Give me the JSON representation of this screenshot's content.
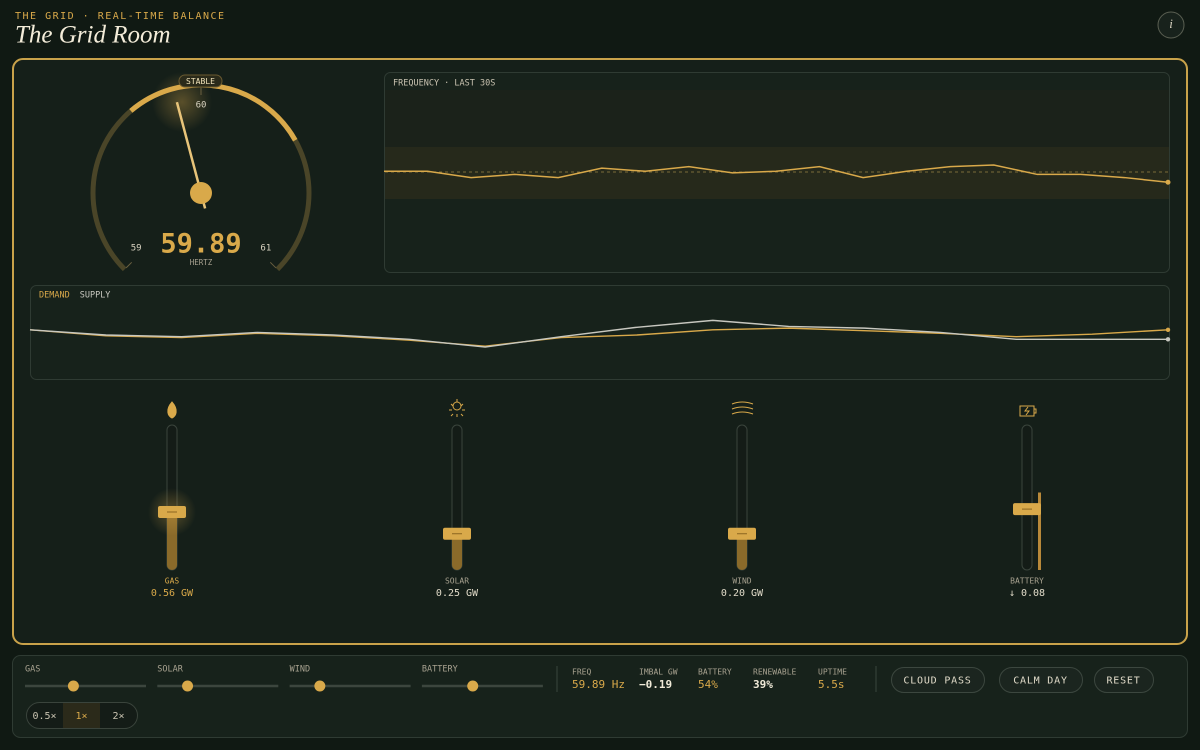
{
  "header": {
    "eyebrow": "THE GRID · REAL-TIME BALANCE",
    "title": "The Grid Room"
  },
  "gauge": {
    "status": "STABLE",
    "value": 59.89,
    "unit": "HERTZ",
    "ticks": [
      59,
      60,
      61
    ]
  },
  "frequency_chart": {
    "label": "FREQUENCY · LAST 30S",
    "ylim": [
      59.4,
      60.6
    ],
    "values": [
      60.03,
      60.03,
      59.99,
      60.01,
      59.99,
      60.05,
      60.03,
      60.06,
      60.02,
      60.03,
      60.06,
      59.99,
      60.03,
      60.06,
      60.07,
      60.01,
      60.01,
      59.99,
      59.96
    ]
  },
  "balance_chart": {
    "ylim": [
      0.6,
      1.6
    ],
    "series": [
      {
        "name": "DEMAND",
        "color": "#d9a94a",
        "values": [
          1.16,
          1.09,
          1.07,
          1.12,
          1.09,
          1.04,
          0.97,
          1.07,
          1.1,
          1.16,
          1.18,
          1.15,
          1.12,
          1.08,
          1.11,
          1.16
        ]
      },
      {
        "name": "SUPPLY",
        "color": "#c8c8c0",
        "values": [
          1.16,
          1.1,
          1.08,
          1.13,
          1.1,
          1.05,
          0.96,
          1.08,
          1.19,
          1.27,
          1.2,
          1.18,
          1.13,
          1.05,
          1.05,
          1.05
        ]
      }
    ]
  },
  "sources": [
    {
      "name": "GAS",
      "value": 0.56,
      "value_label": "0.56 GW",
      "range": [
        0,
        1.4
      ]
    },
    {
      "name": "SOLAR",
      "value": 0.25,
      "value_label": "0.25 GW",
      "range": [
        0,
        1.0
      ]
    },
    {
      "name": "WIND",
      "value": 0.2,
      "value_label": "0.20 GW",
      "range": [
        0,
        0.8
      ]
    },
    {
      "name": "BATTERY",
      "value": -0.08,
      "value_label": "↓ 0.08",
      "range": [
        -0.5,
        0.5
      ]
    }
  ],
  "controls": {
    "speeds": [
      "0.5×",
      "1×",
      "2×"
    ],
    "stats": [
      {
        "label": "FREQ",
        "value": "59.89 Hz"
      },
      {
        "label": "IMBAL GW",
        "value": "−0.19"
      },
      {
        "label": "BATTERY",
        "value": "54%"
      },
      {
        "label": "RENEWABLE",
        "value": "39%"
      },
      {
        "label": "UPTIME",
        "value": "5.5s"
      }
    ],
    "buttons": [
      "CLOUD PASS",
      "CALM DAY",
      "RESET"
    ]
  }
}
